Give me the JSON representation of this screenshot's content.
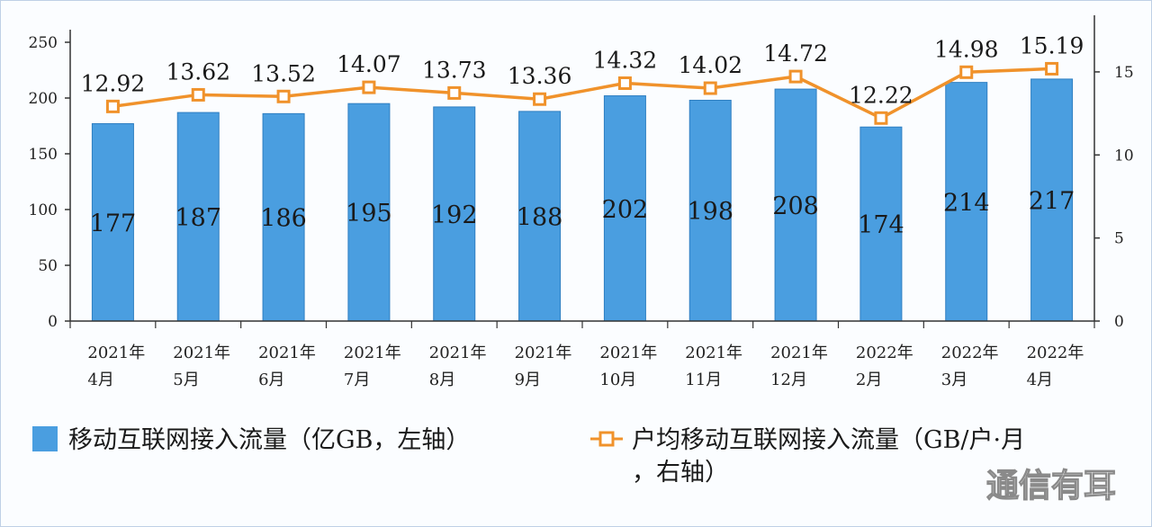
{
  "chart_data": {
    "type": "bar",
    "categories": [
      [
        "2021年",
        "4月"
      ],
      [
        "2021年",
        "5月"
      ],
      [
        "2021年",
        "6月"
      ],
      [
        "2021年",
        "7月"
      ],
      [
        "2021年",
        "8月"
      ],
      [
        "2021年",
        "9月"
      ],
      [
        "2021年",
        "10月"
      ],
      [
        "2021年",
        "11月"
      ],
      [
        "2021年",
        "12月"
      ],
      [
        "2022年",
        "2月"
      ],
      [
        "2022年",
        "3月"
      ],
      [
        "2022年",
        "4月"
      ]
    ],
    "series": [
      {
        "name": "移动互联网接入流量（亿GB，左轴）",
        "type": "bar",
        "axis": "left",
        "color": "#4a9ee0",
        "values": [
          177,
          187,
          186,
          195,
          192,
          188,
          202,
          198,
          208,
          174,
          214,
          217
        ]
      },
      {
        "name": "户均移动互联网接入流量（GB/户·月，右轴）",
        "name_lines": [
          "户均移动互联网接入流量（GB/户·月",
          "，右轴）"
        ],
        "type": "line",
        "axis": "right",
        "color": "#f0922b",
        "values": [
          12.92,
          13.62,
          13.52,
          14.07,
          13.73,
          13.36,
          14.32,
          14.02,
          14.72,
          12.22,
          14.98,
          15.19
        ]
      }
    ],
    "y_left": {
      "ylim": [
        0,
        250
      ],
      "ticks": [
        0,
        50,
        100,
        150,
        200,
        250
      ]
    },
    "y_right": {
      "ylim": [
        0,
        17
      ],
      "ticks": [
        0,
        5,
        10,
        15
      ]
    },
    "legend_position": "bottom",
    "grid": false
  },
  "watermark": "通信有耳"
}
